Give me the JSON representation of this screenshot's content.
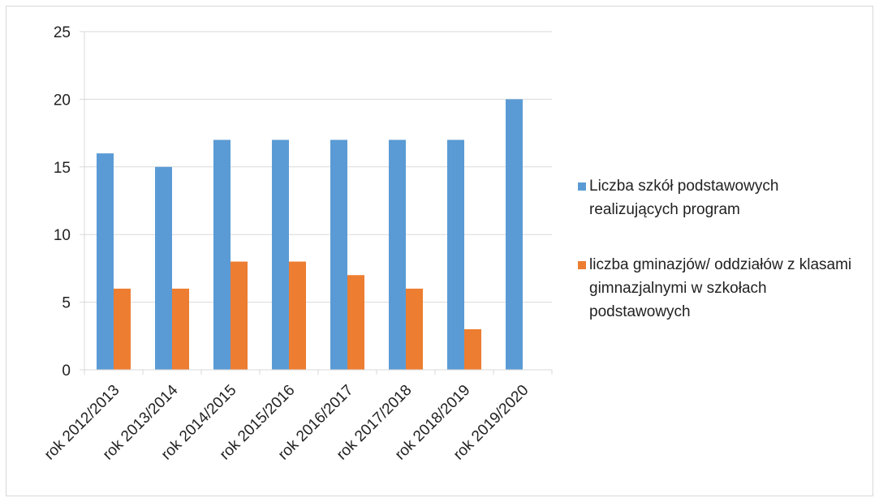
{
  "chart_data": {
    "type": "bar",
    "title": "",
    "xlabel": "",
    "ylabel": "",
    "ylim": [
      0,
      25
    ],
    "yticks": [
      0,
      5,
      10,
      15,
      20,
      25
    ],
    "grid": true,
    "legend_position": "right",
    "categories": [
      "rok 2012/2013",
      "rok 2013/2014",
      "rok 2014/2015",
      "rok 2015/2016",
      "rok 2016/2017",
      "rok 2017/2018",
      "rok 2018/2019",
      "rok 2019/2020"
    ],
    "series": [
      {
        "name": "Liczba szkół podstawowych realizujących program",
        "color": "#5b9bd5",
        "values": [
          16,
          15,
          17,
          17,
          17,
          17,
          17,
          20
        ]
      },
      {
        "name": "liczba gminazjów/ oddziałów z klasami gimnazjalnymi w szkołach podstawowych",
        "color": "#ed7d31",
        "values": [
          6,
          6,
          8,
          8,
          7,
          6,
          3,
          null
        ]
      }
    ]
  }
}
